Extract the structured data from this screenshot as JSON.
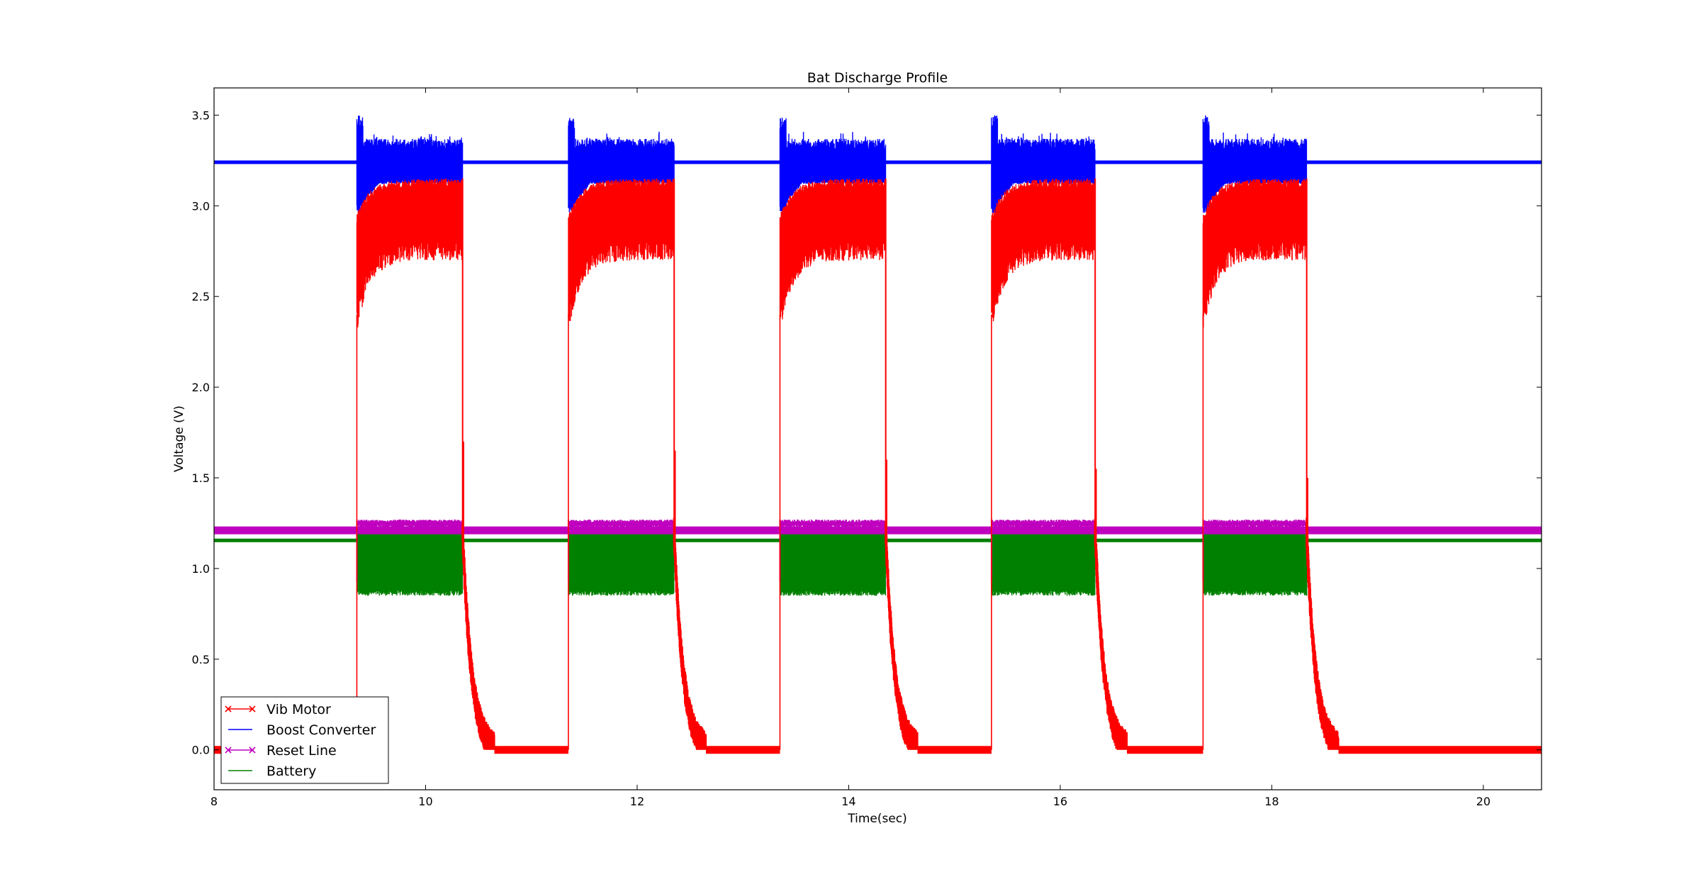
{
  "chart_data": {
    "type": "line",
    "title": "Bat Discharge Profile",
    "xlabel": "Time(sec)",
    "ylabel": "Voltage (V)",
    "xlim": [
      8,
      20.55
    ],
    "ylim": [
      -0.22,
      3.65
    ],
    "xticks": [
      8,
      10,
      12,
      14,
      16,
      18,
      20
    ],
    "yticks": [
      0.0,
      0.5,
      1.0,
      1.5,
      2.0,
      2.5,
      3.0,
      3.5
    ],
    "grid": false,
    "legend": {
      "placement": "lower-left"
    },
    "pulses": [
      {
        "on": 9.35,
        "off": 10.35
      },
      {
        "on": 11.35,
        "off": 12.35
      },
      {
        "on": 13.35,
        "off": 14.35
      },
      {
        "on": 15.35,
        "off": 16.33
      },
      {
        "on": 17.35,
        "off": 18.33
      }
    ],
    "series": [
      {
        "name": "Vib Motor",
        "color": "#ff0000",
        "marker": "x",
        "idle_level": 0.0,
        "active_upper_start": 2.95,
        "active_upper_settled": 3.15,
        "active_lower_start": 2.3,
        "active_lower_settled": 2.7,
        "decay_spike_peak": 1.7,
        "decay_to_zero_sec": 0.3
      },
      {
        "name": "Boost Converter",
        "color": "#0000ff",
        "marker": "none",
        "idle_level": 3.24,
        "active_upper": 3.37,
        "active_lower": 3.12,
        "spike_peak": 3.5,
        "dip_low": 2.96
      },
      {
        "name": "Reset Line",
        "color": "#bf00bf",
        "marker": "x",
        "idle_level": 1.21,
        "active_upper": 1.27,
        "active_lower": 1.18
      },
      {
        "name": "Battery",
        "color": "#008000",
        "marker": "none",
        "idle_level": 1.155,
        "active_upper": 1.22,
        "active_lower": 0.85
      }
    ]
  }
}
